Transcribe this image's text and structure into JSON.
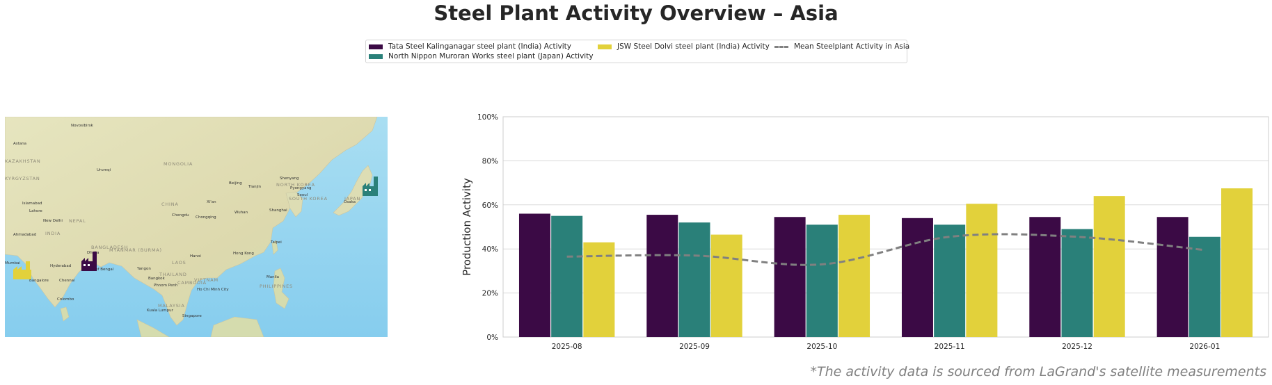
{
  "title": "Steel Plant Activity Overview – Asia",
  "footer": "*The activity data is sourced from LaGrand's satellite measurements",
  "legend": {
    "items": [
      {
        "label": "Tata Steel Kalinganagar steel plant (India) Activity",
        "color": "#3b0a45"
      },
      {
        "label": "North Nippon Muroran Works steel plant (Japan) Activity",
        "color": "#2a8079"
      },
      {
        "label": "JSW Steel Dolvi steel plant (India) Activity",
        "color": "#e2d13b"
      },
      {
        "label": "Mean Steelplant Activity in Asia",
        "color": "#808080"
      }
    ]
  },
  "map": {
    "labels": [
      "Novosibirsk",
      "Astana",
      "KAZAKHSTAN",
      "KYRGYZSTAN",
      "Urumqi",
      "MONGOLIA",
      "Shenyang",
      "Beijing",
      "Tianjin",
      "NORTH KOREA",
      "Pyongyang",
      "Seoul",
      "SOUTH KOREA",
      "Osaka",
      "JAPAN",
      "Islamabad",
      "Lahore",
      "New Delhi",
      "NEPAL",
      "CHINA",
      "Xi'an",
      "Chengdu",
      "Chongqing",
      "Wuhan",
      "Shanghai",
      "Taipei",
      "Ahmadabad",
      "INDIA",
      "Mumbai",
      "Hyderabad",
      "Bangalore",
      "Chennai",
      "Colombo",
      "Bay of Bengal",
      "BANGLADESH",
      "MYANMAR (BURMA)",
      "Dhaka",
      "Yangon",
      "Hanoi",
      "LAOS",
      "THAILAND",
      "Bangkok",
      "Phnom Penh",
      "Ho Chi Minh City",
      "VIETNAM",
      "CAMBODIA",
      "Hong Kong",
      "Manila",
      "PHILIPPINES",
      "Kuala Lumpur",
      "MALAYSIA",
      "Singapore"
    ],
    "markers": [
      {
        "name": "Tata Steel Kalinganagar",
        "color": "#3b0a45",
        "icon": "factory-icon"
      },
      {
        "name": "North Nippon Muroran Works",
        "color": "#2a8079",
        "icon": "factory-icon"
      },
      {
        "name": "JSW Steel Dolvi",
        "color": "#e2d13b",
        "icon": "factory-icon"
      }
    ]
  },
  "chart_data": {
    "type": "bar",
    "ylabel": "Production Activity",
    "xlabel": "",
    "ylim": [
      0,
      100
    ],
    "yticks": [
      0,
      20,
      40,
      60,
      80,
      100
    ],
    "ytick_labels": [
      "0%",
      "20%",
      "40%",
      "60%",
      "80%",
      "100%"
    ],
    "grid": true,
    "legend_position": "top-center",
    "categories": [
      "2025-08",
      "2025-09",
      "2025-10",
      "2025-11",
      "2025-12",
      "2026-01"
    ],
    "series": [
      {
        "name": "Tata Steel Kalinganagar steel plant (India) Activity",
        "color": "#3b0a45",
        "values": [
          56,
          55.5,
          54.5,
          54,
          54.5,
          54.5
        ]
      },
      {
        "name": "North Nippon Muroran Works steel plant (Japan) Activity",
        "color": "#2a8079",
        "values": [
          55,
          52,
          51,
          51,
          49,
          45.5
        ]
      },
      {
        "name": "JSW Steel Dolvi steel plant (India) Activity",
        "color": "#e2d13b",
        "values": [
          43,
          46.5,
          55.5,
          60.5,
          64,
          67.5
        ]
      }
    ],
    "line": {
      "name": "Mean Steelplant Activity in Asia",
      "color": "#808080",
      "values": [
        36.5,
        37,
        33,
        45.5,
        45.5,
        39.5
      ]
    }
  }
}
